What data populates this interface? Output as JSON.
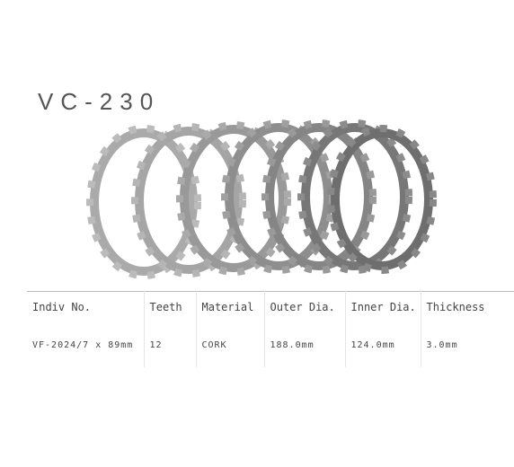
{
  "title": "VC-230",
  "table": {
    "headers": [
      "Indiv No.",
      "Teeth",
      "Material",
      "Outer Dia.",
      "Inner Dia.",
      "Thickness"
    ],
    "rows": [
      [
        "VF-2024/7 x 89mm",
        "12",
        "CORK",
        "188.0mm",
        "124.0mm",
        "3.0mm"
      ]
    ]
  }
}
